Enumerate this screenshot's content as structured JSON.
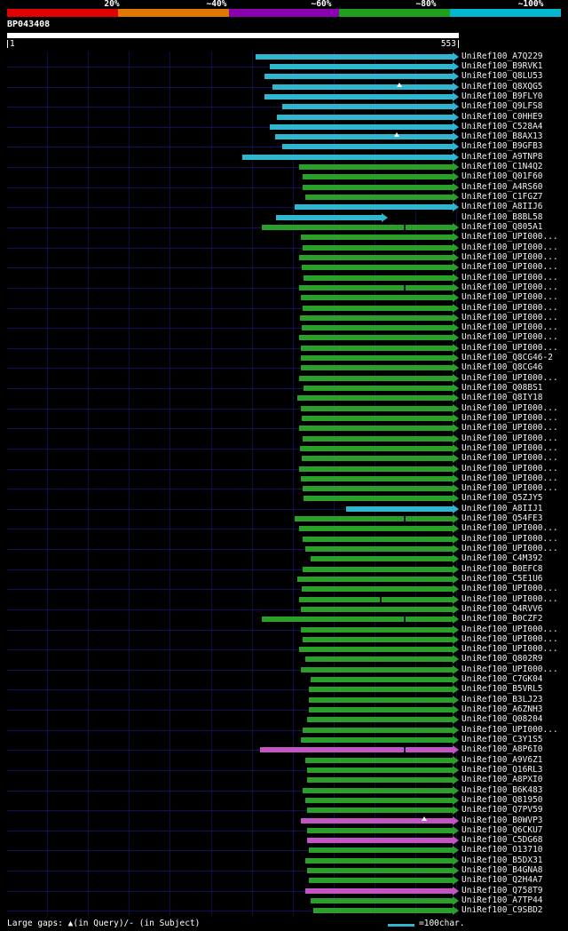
{
  "header": {
    "scale_labels": [
      "20%",
      "~40%",
      "~60%",
      "~80%",
      "~100%"
    ],
    "scale_colors": [
      "#e00000",
      "#e07800",
      "#8a00b0",
      "#1f9e1f",
      "#00b8cf"
    ],
    "query_name": "BP043408",
    "query_start": "1",
    "query_end": "553"
  },
  "footer": {
    "gaps_prefix": "Large gaps: ▲(in Query)/",
    "gaps_dash": "-",
    "gaps_suffix": " (in Subject)",
    "ruler_label": "=100char."
  },
  "colors": {
    "background": "#000000",
    "query_bar": "#ffffff",
    "grid": "#0e0e46",
    "row_line": "#12125a",
    "bar_cyan": "#30b6cf",
    "bar_green": "#2aa02a",
    "bar_magenta": "#c455c4",
    "subject_gap_tick": "#000a30",
    "query_gap_marker": "#ffffff",
    "legend_dash": "#4f9fff"
  },
  "chart_data": {
    "type": "bar",
    "orientation": "horizontal",
    "title": "BP043408",
    "x_range": [
      1,
      553
    ],
    "x_grid_interval": 50,
    "legend": {
      "labels": [
        "20%",
        "~40%",
        "~60%",
        "~80%",
        "~100%"
      ],
      "colors": [
        "#e00000",
        "#e07800",
        "#8a00b0",
        "#1f9e1f",
        "#00b8cf"
      ],
      "position": "top"
    },
    "rows": [
      {
        "label": "UniRef100_A7Q229",
        "color": "cyan",
        "start": 305,
        "end": 553
      },
      {
        "label": "UniRef100_B9RVK1",
        "color": "cyan",
        "start": 322,
        "end": 553
      },
      {
        "label": "UniRef100_Q8LU53",
        "color": "cyan",
        "start": 316,
        "end": 553
      },
      {
        "label": "UniRef100_Q8XQG5",
        "color": "cyan",
        "start": 325,
        "end": 553,
        "gaps": [
          {
            "type": "query",
            "pos": 480
          }
        ]
      },
      {
        "label": "UniRef100_B9FLY0",
        "color": "cyan",
        "start": 316,
        "end": 553
      },
      {
        "label": "UniRef100_Q9LFS8",
        "color": "cyan",
        "start": 337,
        "end": 553
      },
      {
        "label": "UniRef100_C0HHE9",
        "color": "cyan",
        "start": 331,
        "end": 553
      },
      {
        "label": "UniRef100_C528A4",
        "color": "cyan",
        "start": 322,
        "end": 553
      },
      {
        "label": "UniRef100_B8AX13",
        "color": "cyan",
        "start": 328,
        "end": 553,
        "gaps": [
          {
            "type": "query",
            "pos": 477
          }
        ]
      },
      {
        "label": "UniRef100_B9GFB3",
        "color": "cyan",
        "start": 337,
        "end": 553
      },
      {
        "label": "UniRef100_A9TNP8",
        "color": "cyan",
        "start": 288,
        "end": 553
      },
      {
        "label": "UniRef100_C1N4Q2",
        "color": "green",
        "start": 358,
        "end": 553
      },
      {
        "label": "UniRef100_Q01F60",
        "color": "green",
        "start": 362,
        "end": 553
      },
      {
        "label": "UniRef100_A4RS60",
        "color": "green",
        "start": 362,
        "end": 553
      },
      {
        "label": "UniRef100_C1FGZ7",
        "color": "green",
        "start": 365,
        "end": 553
      },
      {
        "label": "UniRef100_A8IIJ6",
        "color": "cyan",
        "start": 352,
        "end": 553
      },
      {
        "label": "UniRef100_B8BL58",
        "color": "cyan",
        "start": 330,
        "end": 466
      },
      {
        "label": "UniRef100_Q805A1",
        "color": "green",
        "start": 312,
        "end": 553,
        "gaps": [
          {
            "type": "subject",
            "pos": 487
          }
        ]
      },
      {
        "label": "UniRef100_UPI000...",
        "color": "green",
        "start": 360,
        "end": 553
      },
      {
        "label": "UniRef100_UPI000...",
        "color": "green",
        "start": 362,
        "end": 553
      },
      {
        "label": "UniRef100_UPI000...",
        "color": "green",
        "start": 358,
        "end": 553
      },
      {
        "label": "UniRef100_UPI000...",
        "color": "green",
        "start": 361,
        "end": 553
      },
      {
        "label": "UniRef100_UPI000...",
        "color": "green",
        "start": 363,
        "end": 553
      },
      {
        "label": "UniRef100_UPI000...",
        "color": "green",
        "start": 358,
        "end": 553,
        "gaps": [
          {
            "type": "subject",
            "pos": 487
          }
        ]
      },
      {
        "label": "UniRef100_UPI000...",
        "color": "green",
        "start": 360,
        "end": 553
      },
      {
        "label": "UniRef100_UPI000...",
        "color": "green",
        "start": 362,
        "end": 553
      },
      {
        "label": "UniRef100_UPI000...",
        "color": "green",
        "start": 359,
        "end": 553
      },
      {
        "label": "UniRef100_UPI000...",
        "color": "green",
        "start": 361,
        "end": 553
      },
      {
        "label": "UniRef100_UPI000...",
        "color": "green",
        "start": 358,
        "end": 553
      },
      {
        "label": "UniRef100_UPI000...",
        "color": "green",
        "start": 360,
        "end": 553
      },
      {
        "label": "UniRef100_Q8CG46-2",
        "color": "green",
        "start": 360,
        "end": 553
      },
      {
        "label": "UniRef100_Q8CG46",
        "color": "green",
        "start": 360,
        "end": 553
      },
      {
        "label": "UniRef100_UPI000...",
        "color": "green",
        "start": 358,
        "end": 553
      },
      {
        "label": "UniRef100_Q08BS1",
        "color": "green",
        "start": 363,
        "end": 553
      },
      {
        "label": "UniRef100_Q8IY18",
        "color": "green",
        "start": 356,
        "end": 553
      },
      {
        "label": "UniRef100_UPI000...",
        "color": "green",
        "start": 360,
        "end": 553
      },
      {
        "label": "UniRef100_UPI000...",
        "color": "green",
        "start": 361,
        "end": 553
      },
      {
        "label": "UniRef100_UPI000...",
        "color": "green",
        "start": 358,
        "end": 553
      },
      {
        "label": "UniRef100_UPI000...",
        "color": "green",
        "start": 362,
        "end": 553
      },
      {
        "label": "UniRef100_UPI000...",
        "color": "green",
        "start": 359,
        "end": 553
      },
      {
        "label": "UniRef100_UPI000...",
        "color": "green",
        "start": 361,
        "end": 553
      },
      {
        "label": "UniRef100_UPI000...",
        "color": "green",
        "start": 358,
        "end": 553
      },
      {
        "label": "UniRef100_UPI000...",
        "color": "green",
        "start": 360,
        "end": 553
      },
      {
        "label": "UniRef100_UPI000...",
        "color": "green",
        "start": 362,
        "end": 553
      },
      {
        "label": "UniRef100_Q5ZJY5",
        "color": "green",
        "start": 363,
        "end": 553
      },
      {
        "label": "UniRef100_A8IIJ1",
        "color": "cyan",
        "start": 415,
        "end": 553
      },
      {
        "label": "UniRef100_Q54FE3",
        "color": "green",
        "start": 352,
        "end": 553,
        "gaps": [
          {
            "type": "subject",
            "pos": 487
          }
        ]
      },
      {
        "label": "UniRef100_UPI000...",
        "color": "green",
        "start": 358,
        "end": 553
      },
      {
        "label": "UniRef100_UPI000...",
        "color": "green",
        "start": 362,
        "end": 553
      },
      {
        "label": "UniRef100_UPI000...",
        "color": "green",
        "start": 365,
        "end": 553
      },
      {
        "label": "UniRef100_C4M392",
        "color": "green",
        "start": 372,
        "end": 553
      },
      {
        "label": "UniRef100_B0EFC8",
        "color": "green",
        "start": 362,
        "end": 553
      },
      {
        "label": "UniRef100_C5E1U6",
        "color": "green",
        "start": 356,
        "end": 553
      },
      {
        "label": "UniRef100_UPI000...",
        "color": "green",
        "start": 361,
        "end": 553
      },
      {
        "label": "UniRef100_UPI000...",
        "color": "green",
        "start": 358,
        "end": 553,
        "gaps": [
          {
            "type": "subject",
            "pos": 458
          }
        ]
      },
      {
        "label": "UniRef100_Q4RVV6",
        "color": "green",
        "start": 360,
        "end": 553
      },
      {
        "label": "UniRef100_B0CZF2",
        "color": "green",
        "start": 312,
        "end": 553,
        "gaps": [
          {
            "type": "subject",
            "pos": 487
          }
        ]
      },
      {
        "label": "UniRef100_UPI000...",
        "color": "green",
        "start": 360,
        "end": 553
      },
      {
        "label": "UniRef100_UPI000...",
        "color": "green",
        "start": 362,
        "end": 553
      },
      {
        "label": "UniRef100_UPI000...",
        "color": "green",
        "start": 358,
        "end": 553
      },
      {
        "label": "UniRef100_Q802R9",
        "color": "green",
        "start": 365,
        "end": 553
      },
      {
        "label": "UniRef100_UPI000...",
        "color": "green",
        "start": 360,
        "end": 553
      },
      {
        "label": "UniRef100_C7GK04",
        "color": "green",
        "start": 372,
        "end": 553
      },
      {
        "label": "UniRef100_B5VRL5",
        "color": "green",
        "start": 370,
        "end": 553
      },
      {
        "label": "UniRef100_B3LJ23",
        "color": "green",
        "start": 370,
        "end": 553
      },
      {
        "label": "UniRef100_A6ZNH3",
        "color": "green",
        "start": 370,
        "end": 553
      },
      {
        "label": "UniRef100_Q08204",
        "color": "green",
        "start": 368,
        "end": 553
      },
      {
        "label": "UniRef100_UPI000...",
        "color": "green",
        "start": 362,
        "end": 553
      },
      {
        "label": "UniRef100_C3Y1S5",
        "color": "green",
        "start": 360,
        "end": 553
      },
      {
        "label": "UniRef100_A8P6I0",
        "color": "magenta",
        "start": 310,
        "end": 553,
        "gaps": [
          {
            "type": "subject",
            "pos": 487
          }
        ]
      },
      {
        "label": "UniRef100_A9V6Z1",
        "color": "green",
        "start": 365,
        "end": 553
      },
      {
        "label": "UniRef100_Q16RL3",
        "color": "green",
        "start": 368,
        "end": 553
      },
      {
        "label": "UniRef100_A8PXI0",
        "color": "green",
        "start": 368,
        "end": 553
      },
      {
        "label": "UniRef100_B6K483",
        "color": "green",
        "start": 362,
        "end": 553
      },
      {
        "label": "UniRef100_Q81950",
        "color": "green",
        "start": 365,
        "end": 553
      },
      {
        "label": "UniRef100_Q7PV59",
        "color": "green",
        "start": 368,
        "end": 553
      },
      {
        "label": "UniRef100_B0WVP3",
        "color": "magenta",
        "start": 360,
        "end": 553,
        "gaps": [
          {
            "type": "query",
            "pos": 511
          }
        ]
      },
      {
        "label": "UniRef100_Q6CKU7",
        "color": "green",
        "start": 368,
        "end": 553
      },
      {
        "label": "UniRef100_C5DG68",
        "color": "magenta",
        "start": 368,
        "end": 553
      },
      {
        "label": "UniRef100_O13710",
        "color": "green",
        "start": 370,
        "end": 553
      },
      {
        "label": "UniRef100_B5DX31",
        "color": "green",
        "start": 365,
        "end": 553
      },
      {
        "label": "UniRef100_B4GNA8",
        "color": "green",
        "start": 368,
        "end": 553
      },
      {
        "label": "UniRef100_Q2H4A7",
        "color": "green",
        "start": 370,
        "end": 553
      },
      {
        "label": "UniRef100_Q758T9",
        "color": "magenta",
        "start": 365,
        "end": 553
      },
      {
        "label": "UniRef100_A7TP44",
        "color": "green",
        "start": 372,
        "end": 553
      },
      {
        "label": "UniRef100_C9SBD2",
        "color": "green",
        "start": 375,
        "end": 553
      }
    ]
  }
}
